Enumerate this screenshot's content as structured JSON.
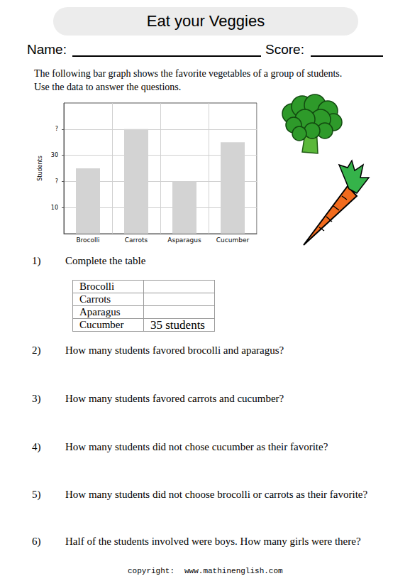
{
  "header": {
    "title": "Eat your Veggies",
    "name_label": "Name:",
    "score_label": "Score:"
  },
  "intro": [
    "The following bar graph shows the favorite vegetables of a group of students.",
    "Use the data to answer the questions."
  ],
  "chart_data": {
    "type": "bar",
    "y_label": "Students",
    "categories": [
      "Brocolli",
      "Carrots",
      "Asparagus",
      "Cucumber"
    ],
    "values": [
      25,
      40,
      20,
      35
    ],
    "color": "#d3d3d3",
    "ylim": [
      0,
      50
    ],
    "yticks": [
      10,
      {
        "value": 20,
        "label": "?"
      },
      30,
      {
        "value": 40,
        "label": "?"
      }
    ],
    "grid": true
  },
  "table": {
    "rows": [
      [
        "Brocolli"
      ],
      [
        "Carrots"
      ],
      [
        "Aparagus"
      ],
      [
        "Cucumber",
        "35 students"
      ]
    ]
  },
  "questions": [
    {
      "number": "1)",
      "text": "Complete the table"
    },
    {
      "number": "2)",
      "text": "How many students favored brocolli and aparagus?"
    },
    {
      "number": "3)",
      "text": "How many students favored carrots and cucumber?"
    },
    {
      "number": "4)",
      "text": "How many students did not chose cucumber as their favorite?"
    },
    {
      "number": "5)",
      "text": "How many students did not choose brocolli or carrots as their favorite?"
    },
    {
      "number": "6)",
      "text": "Half of the students involved were boys. How many girls were there?"
    }
  ],
  "footer": {
    "label": "copyright:",
    "url": "www.mathinenglish.com"
  }
}
